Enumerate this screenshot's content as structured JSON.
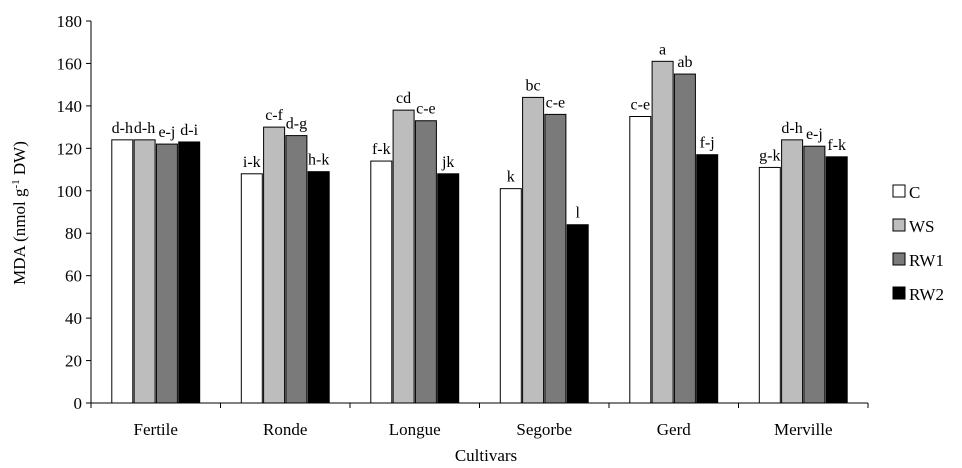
{
  "chart_data": {
    "type": "bar",
    "title": "",
    "xlabel": "Cultivars",
    "ylabel": {
      "prefix": "MDA (nmol g",
      "superscript": "-1",
      "suffix": " DW)"
    },
    "ylim": [
      0,
      180
    ],
    "yticks": [
      0,
      20,
      40,
      60,
      80,
      100,
      120,
      140,
      160,
      180
    ],
    "grid": false,
    "legend_position": "right",
    "categories": [
      "Fertile",
      "Ronde",
      "Longue",
      "Segorbe",
      "Gerd",
      "Merville"
    ],
    "series": [
      {
        "name": "C",
        "color": "#ffffff",
        "values": [
          124,
          108,
          114,
          101,
          135,
          111
        ],
        "labels": [
          "d-h",
          "i-k",
          "f-k",
          "k",
          "c-e",
          "g-k"
        ]
      },
      {
        "name": "WS",
        "color": "#bdbdbd",
        "values": [
          124,
          130,
          138,
          144,
          161,
          124
        ],
        "labels": [
          "d-h",
          "c-f",
          "cd",
          "bc",
          "a",
          "d-h"
        ]
      },
      {
        "name": "RW1",
        "color": "#7a7a7a",
        "values": [
          122,
          126,
          133,
          136,
          155,
          121
        ],
        "labels": [
          "e-j",
          "d-g",
          "c-e",
          "c-e",
          "ab",
          "e-j"
        ]
      },
      {
        "name": "RW2",
        "color": "#000000",
        "values": [
          123,
          109,
          108,
          84,
          117,
          116
        ],
        "labels": [
          "d-i",
          "h-k",
          "jk",
          "l",
          "f-j",
          "f-k"
        ]
      }
    ]
  }
}
